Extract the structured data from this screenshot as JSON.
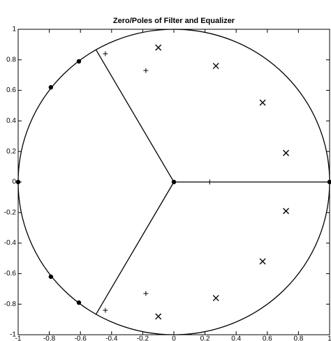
{
  "chart_data": {
    "type": "scatter",
    "title": "Zero/Poles of Filter and Equalizer",
    "xlim": [
      -1,
      1
    ],
    "ylim": [
      -1,
      1
    ],
    "xticks": [
      -1,
      -0.8,
      -0.6,
      -0.4,
      -0.2,
      0,
      0.2,
      0.4,
      0.6,
      0.8,
      1
    ],
    "yticks": [
      -1,
      -0.8,
      -0.6,
      -0.4,
      -0.2,
      0,
      0.2,
      0.4,
      0.6,
      0.8,
      1
    ],
    "color": "#000000",
    "unit_circle": true,
    "series": [
      {
        "marker": "o",
        "x": [
          -1,
          -0.79,
          -0.61,
          -0.79,
          -0.61,
          0,
          1
        ],
        "values": [
          0,
          0.62,
          0.79,
          -0.62,
          -0.79,
          0,
          0
        ]
      },
      {
        "marker": "x",
        "x": [
          -0.1,
          0.27,
          0.57,
          0.72,
          0.72,
          0.57,
          0.27,
          -0.1
        ],
        "values": [
          0.88,
          0.76,
          0.52,
          0.19,
          -0.19,
          -0.52,
          -0.76,
          -0.88
        ]
      },
      {
        "marker": "+",
        "x": [
          -0.18,
          -0.18,
          0.23,
          -0.44,
          -0.44
        ],
        "values": [
          0.73,
          -0.73,
          0,
          0.84,
          -0.84
        ]
      },
      {
        "marker": "line",
        "x": [
          0,
          -0.5
        ],
        "values": [
          0,
          0.866
        ]
      },
      {
        "marker": "line",
        "x": [
          0,
          -0.5
        ],
        "values": [
          0,
          -0.866
        ]
      },
      {
        "marker": "line",
        "x": [
          0,
          1
        ],
        "values": [
          0,
          0
        ]
      }
    ]
  }
}
